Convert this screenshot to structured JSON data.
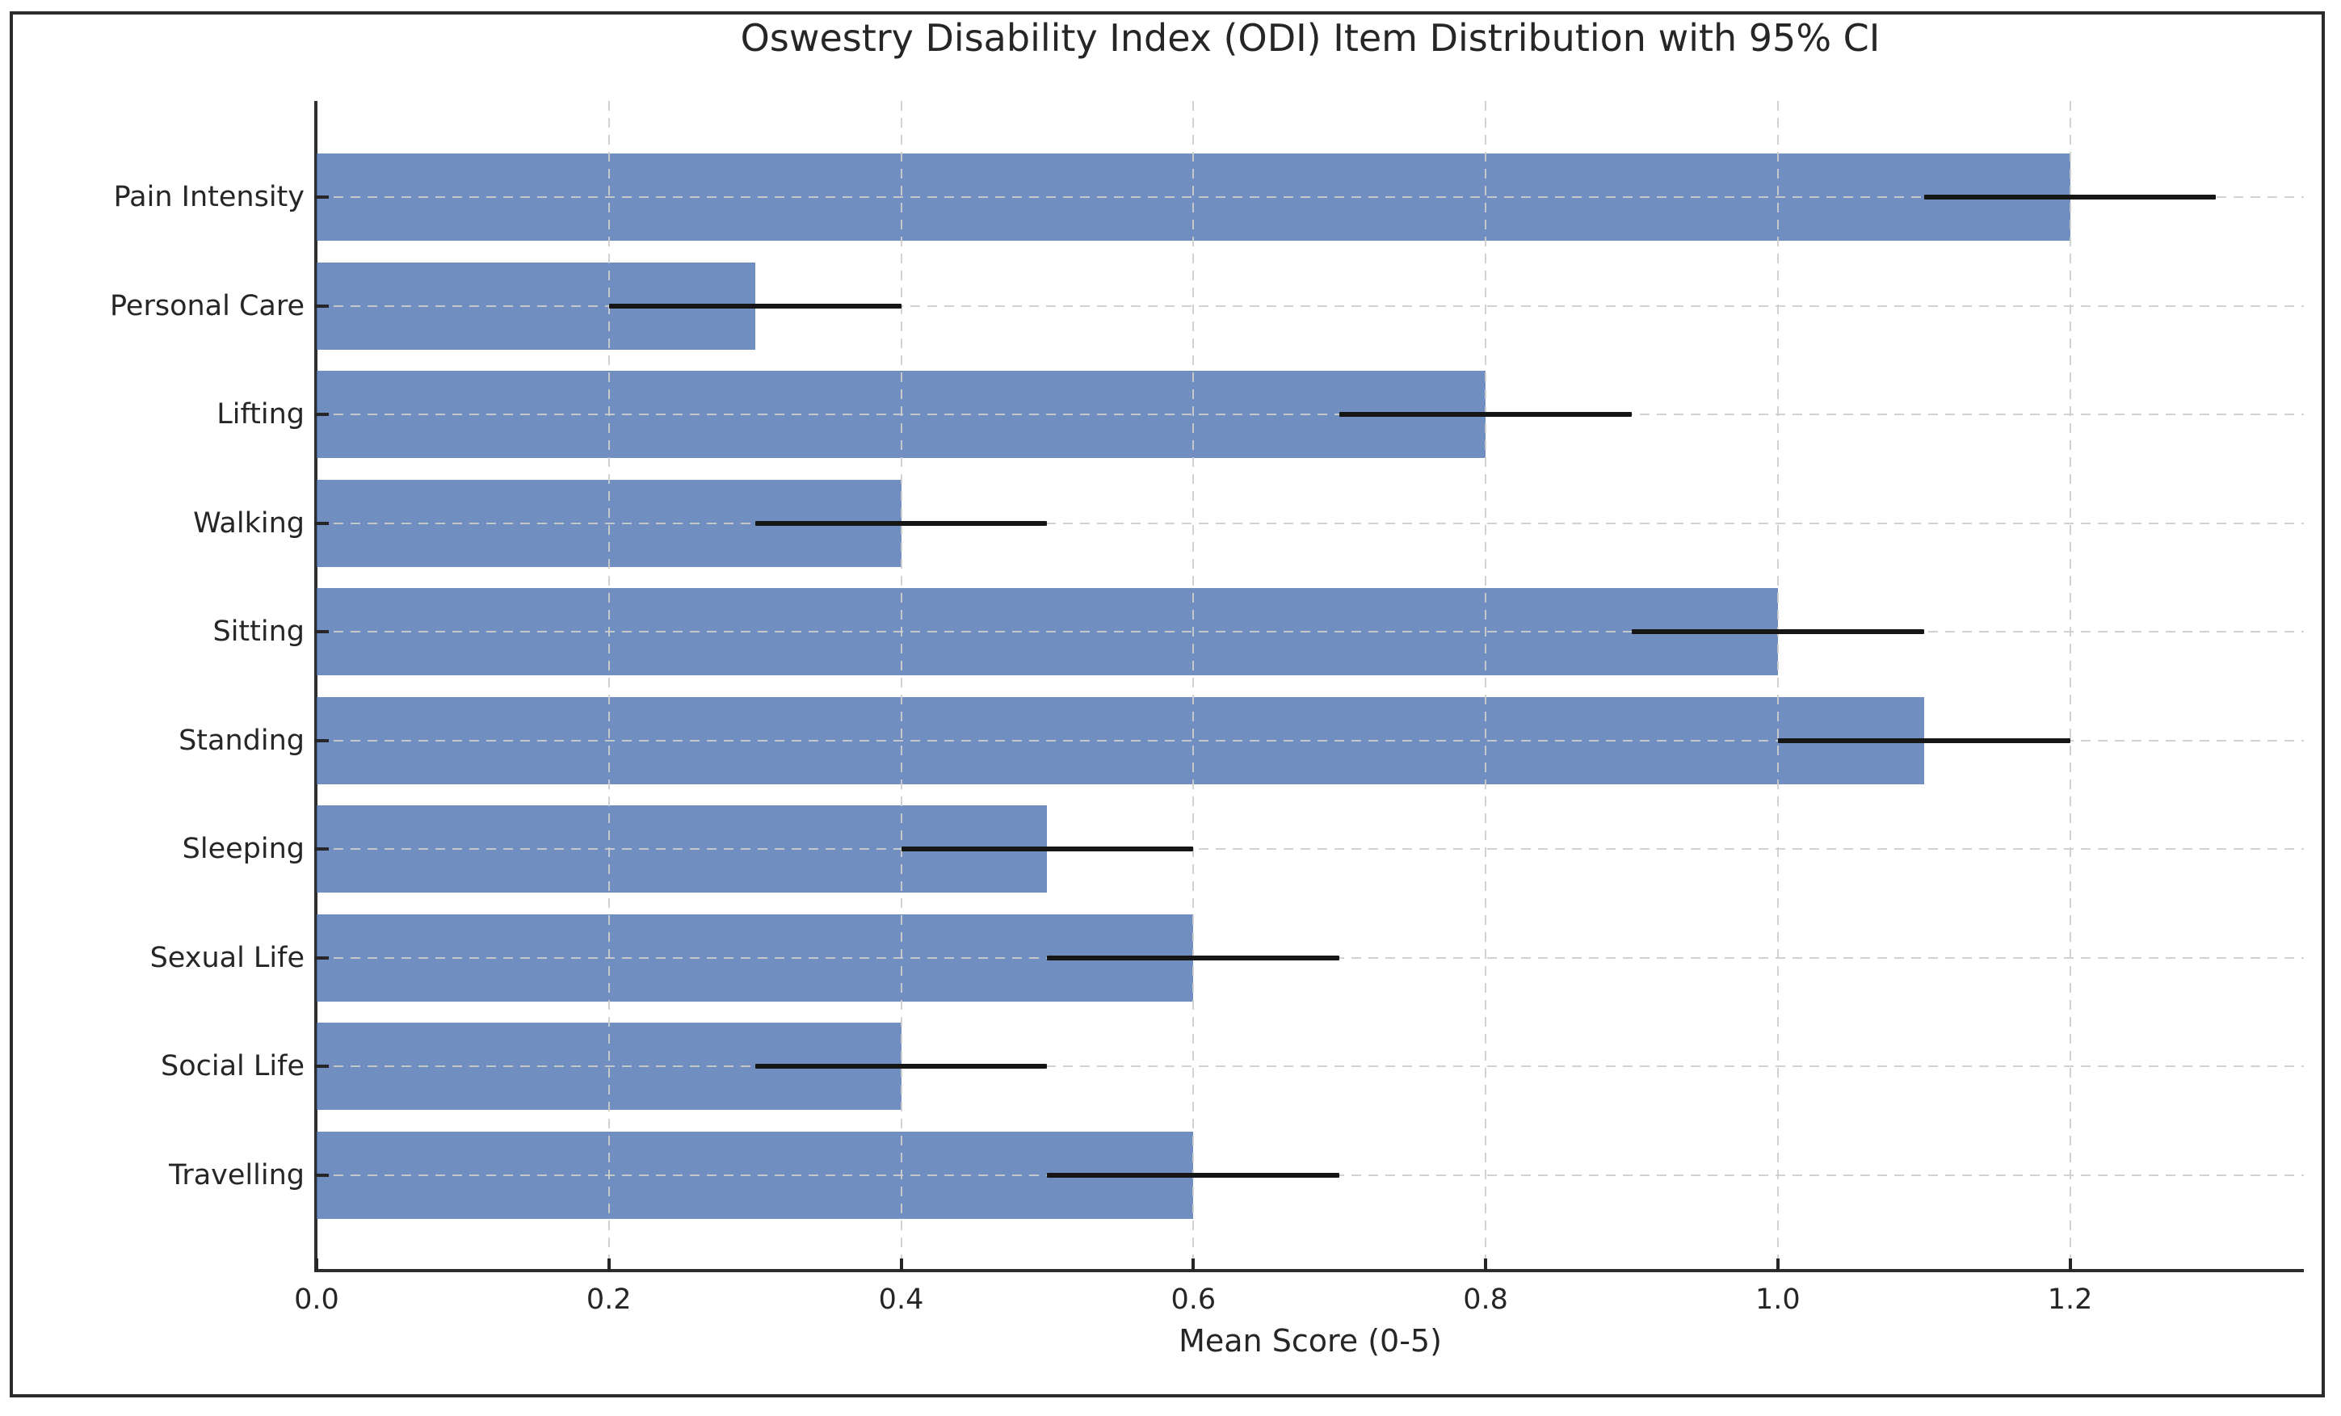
{
  "figure": {
    "background": "#ffffff",
    "border_color": "#2b2b2b"
  },
  "chart_data": {
    "type": "bar",
    "orientation": "horizontal",
    "title": "Oswestry Disability Index (ODI) Item Distribution with 95% CI",
    "xlabel": "Mean Score (0-5)",
    "ylabel": "",
    "categories": [
      "Pain Intensity",
      "Personal Care",
      "Lifting",
      "Walking",
      "Sitting",
      "Standing",
      "Sleeping",
      "Sexual Life",
      "Social Life",
      "Travelling"
    ],
    "values": [
      1.2,
      0.3,
      0.8,
      0.4,
      1.0,
      1.1,
      0.5,
      0.6,
      0.4,
      0.6
    ],
    "ci_low": [
      1.1,
      0.2,
      0.7,
      0.3,
      0.9,
      1.0,
      0.4,
      0.5,
      0.3,
      0.5
    ],
    "ci_high": [
      1.3,
      0.4,
      0.9,
      0.5,
      1.1,
      1.2,
      0.6,
      0.7,
      0.5,
      0.7
    ],
    "x_ticks": [
      0.0,
      0.2,
      0.4,
      0.6,
      0.8,
      1.0,
      1.2
    ],
    "x_tick_labels": [
      "0.0",
      "0.2",
      "0.4",
      "0.6",
      "0.8",
      "1.0",
      "1.2"
    ],
    "xlim": [
      0,
      1.36
    ],
    "grid": true,
    "grid_style": "dashed",
    "legend_position": "none",
    "style": {
      "bar_color": "#4C72B0",
      "bar_alpha": 0.8,
      "error_color": "#161616",
      "grid_color": "#c9c9c9",
      "spine_color": "#2e2e2e",
      "tick_color": "#262626",
      "text_color": "#262626"
    }
  }
}
